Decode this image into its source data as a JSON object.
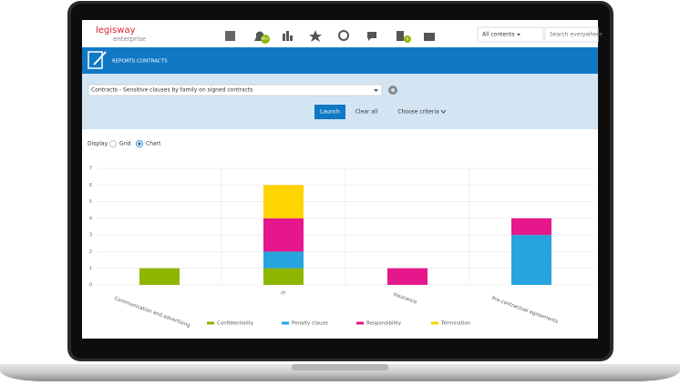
{
  "header": {
    "logo": "legisway",
    "logo_sub": "enterprise",
    "notification_badge": "99+",
    "task_badge": "0",
    "search_scope": "All contents",
    "search_placeholder": "Search everywhere"
  },
  "banner": {
    "title": "REPORTS CONTRACTS"
  },
  "criteria": {
    "report": "Contracts - Sensitive clauses by family on signed contracts",
    "launch": "Launch",
    "clear": "Clear all",
    "choose": "Choose criteria"
  },
  "display": {
    "label": "Display",
    "grid": "Grid",
    "chart": "Chart"
  },
  "chart_data": {
    "type": "stacked_bar",
    "categories": [
      "Communication and advertising",
      "IT",
      "Insurance",
      "Pre-contractual agreements"
    ],
    "series": [
      {
        "name": "Confidentiality",
        "color": "#8db600",
        "values": [
          1,
          1,
          0,
          0
        ]
      },
      {
        "name": "Penalty clause",
        "color": "#27a3dd",
        "values": [
          0,
          1,
          0,
          3
        ]
      },
      {
        "name": "Responsibility",
        "color": "#e5178a",
        "values": [
          0,
          2,
          1,
          1
        ]
      },
      {
        "name": "Termination",
        "color": "#ffd400",
        "values": [
          0,
          2,
          0,
          0
        ]
      }
    ],
    "ylim": [
      0,
      7
    ],
    "yticks": [
      0,
      1,
      2,
      3,
      4,
      5,
      6,
      7
    ],
    "grid": true,
    "legend": "bottom"
  }
}
